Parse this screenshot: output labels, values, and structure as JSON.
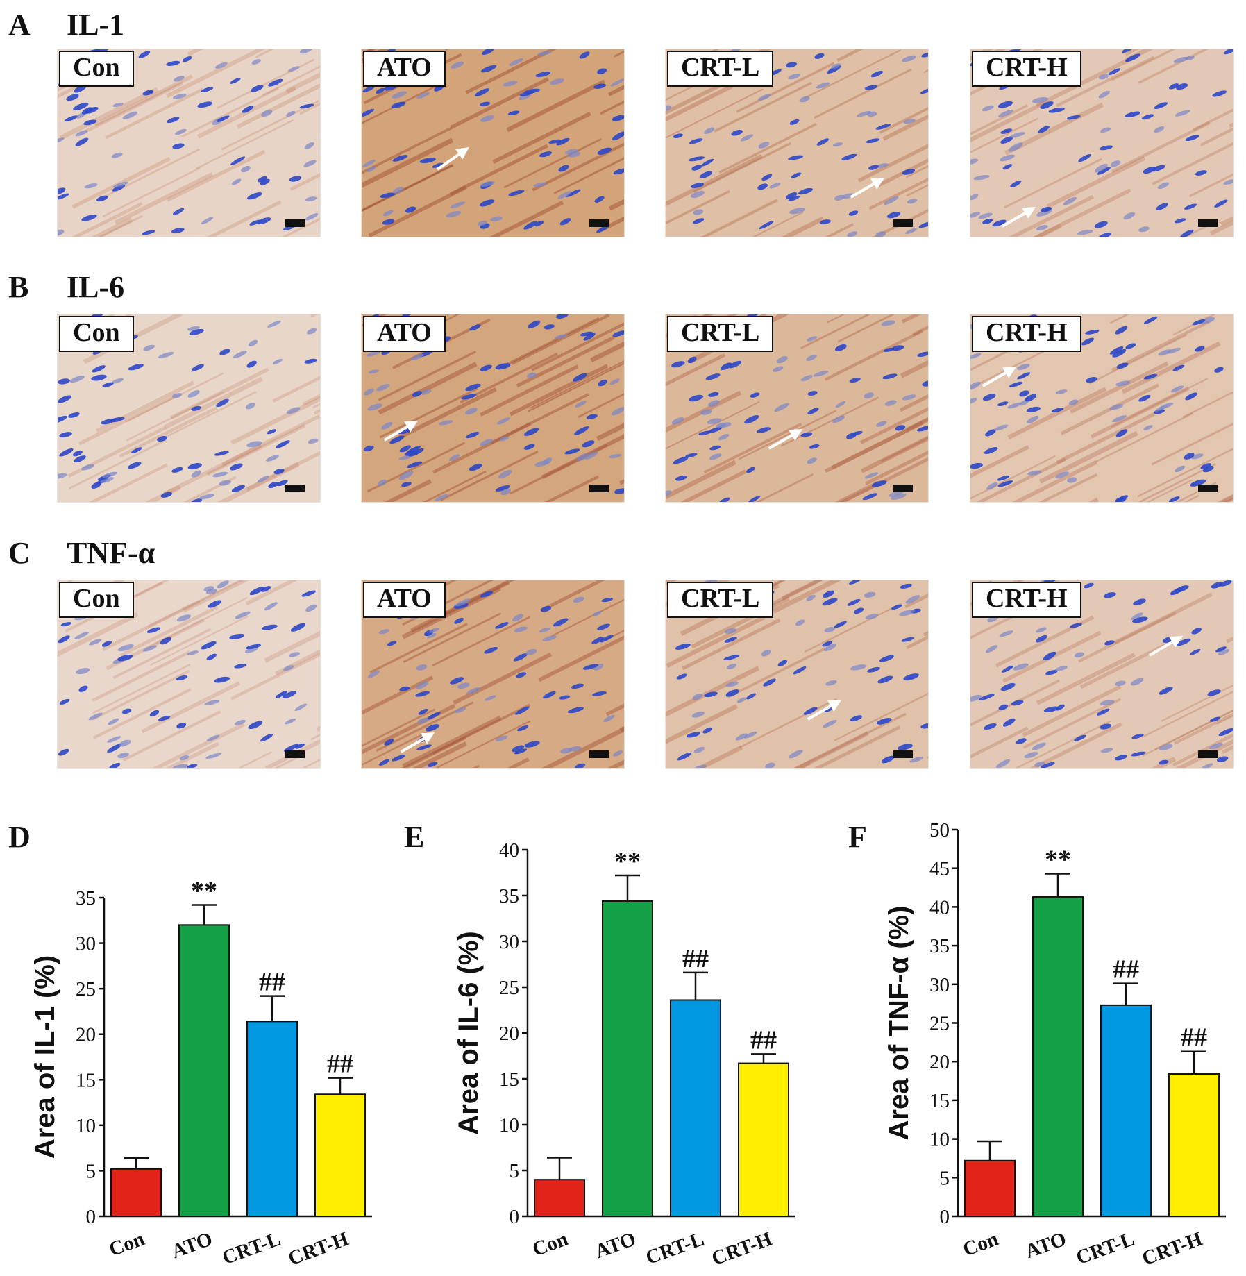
{
  "figure": {
    "rows": [
      {
        "letter": "A",
        "title": "IL-1",
        "stain": "weak"
      },
      {
        "letter": "B",
        "title": "IL-6",
        "stain": "weak"
      },
      {
        "letter": "C",
        "title": "TNF-α",
        "stain": "weak"
      }
    ],
    "groups": [
      "Con",
      "ATO",
      "CRT-L",
      "CRT-H"
    ],
    "stain_intensity": [
      [
        0.15,
        0.85,
        0.45,
        0.3
      ],
      [
        0.12,
        0.8,
        0.55,
        0.35
      ],
      [
        0.1,
        0.75,
        0.4,
        0.3
      ]
    ]
  },
  "chart_data": [
    {
      "type": "bar",
      "letter": "D",
      "categories": [
        "Con",
        "ATO",
        "CRT-L",
        "CRT-H"
      ],
      "values": [
        5.2,
        32.0,
        21.4,
        13.4
      ],
      "errors": [
        1.2,
        2.2,
        2.8,
        1.8
      ],
      "annotations": [
        "",
        "**",
        "##",
        "##"
      ],
      "colors": [
        "#e2231a",
        "#14a046",
        "#0098e0",
        "#ffee00"
      ],
      "ylabel": "Area of IL-1 (%)",
      "ylim": [
        0,
        35
      ],
      "yticks": [
        0,
        5,
        10,
        15,
        20,
        25,
        30,
        35
      ]
    },
    {
      "type": "bar",
      "letter": "E",
      "categories": [
        "Con",
        "ATO",
        "CRT-L",
        "CRT-H"
      ],
      "values": [
        4.0,
        34.4,
        23.6,
        16.7
      ],
      "errors": [
        2.4,
        2.8,
        3.0,
        1.0
      ],
      "annotations": [
        "",
        "**",
        "##",
        "##"
      ],
      "colors": [
        "#e2231a",
        "#14a046",
        "#0098e0",
        "#ffee00"
      ],
      "ylabel": "Area of IL-6 (%)",
      "ylim": [
        0,
        40
      ],
      "yticks": [
        0,
        5,
        10,
        15,
        20,
        25,
        30,
        35,
        40
      ]
    },
    {
      "type": "bar",
      "letter": "F",
      "categories": [
        "Con",
        "ATO",
        "CRT-L",
        "CRT-H"
      ],
      "values": [
        7.2,
        41.3,
        27.3,
        18.4
      ],
      "errors": [
        2.5,
        3.0,
        2.8,
        2.9
      ],
      "annotations": [
        "",
        "**",
        "##",
        "##"
      ],
      "colors": [
        "#e2231a",
        "#14a046",
        "#0098e0",
        "#ffee00"
      ],
      "ylabel": "Area of TNF-α (%)",
      "ylim": [
        0,
        50
      ],
      "yticks": [
        0,
        5,
        10,
        15,
        20,
        25,
        30,
        35,
        40,
        45,
        50
      ]
    }
  ]
}
